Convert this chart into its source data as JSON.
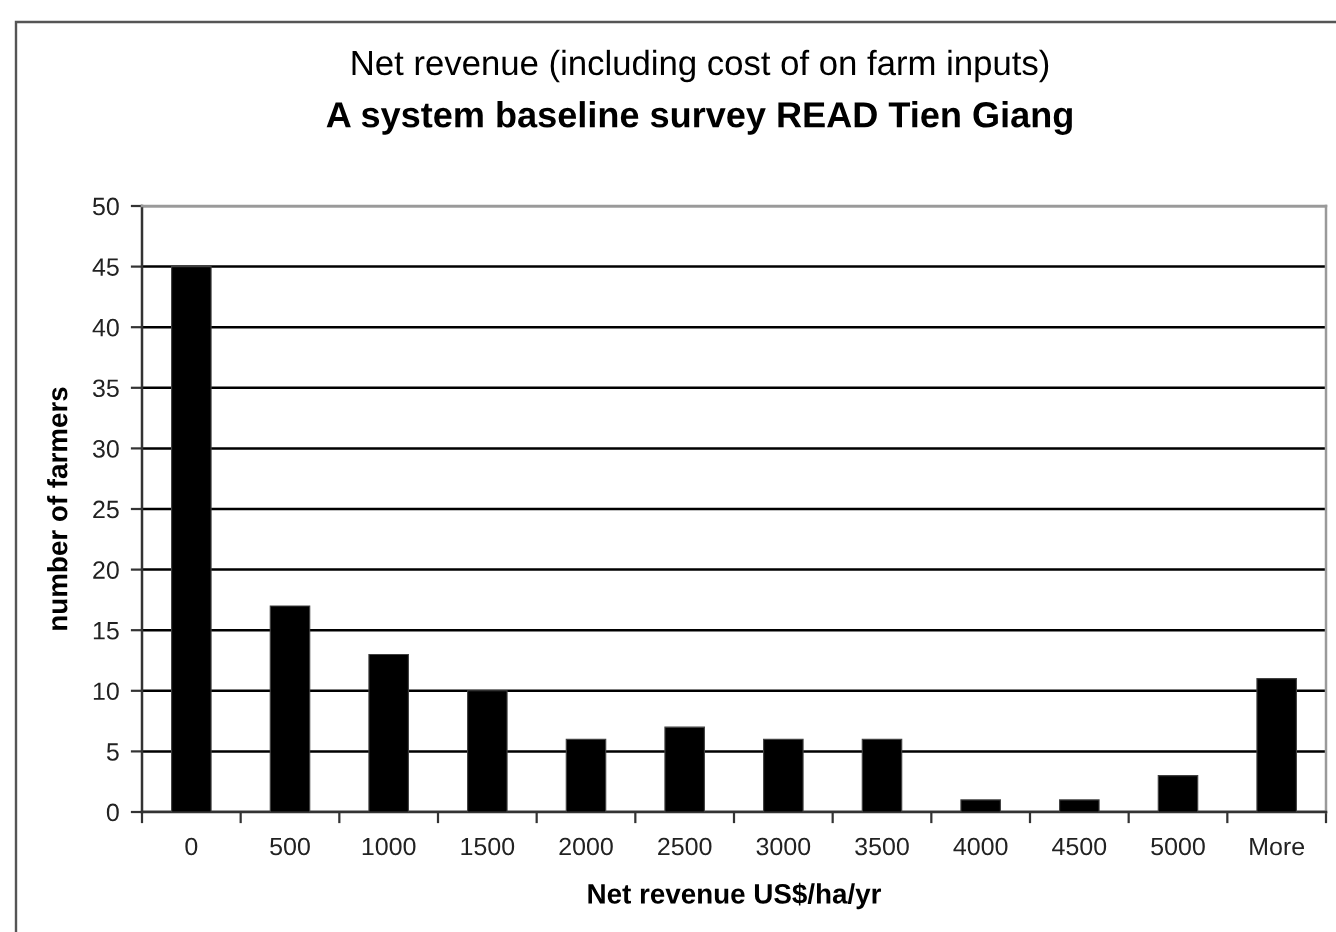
{
  "chart_data": {
    "type": "bar",
    "title": "Net revenue (including cost of on farm inputs)",
    "subtitle": "A system baseline survey READ Tien Giang",
    "xlabel": "Net revenue US$/ha/yr",
    "ylabel": "number of farmers",
    "categories": [
      "0",
      "500",
      "1000",
      "1500",
      "2000",
      "2500",
      "3000",
      "3500",
      "4000",
      "4500",
      "5000",
      "More"
    ],
    "values": [
      45,
      17,
      13,
      10,
      6,
      7,
      6,
      6,
      1,
      1,
      3,
      11
    ],
    "color": "#000000",
    "ylim": [
      0,
      50
    ],
    "yticks": [
      0,
      5,
      10,
      15,
      20,
      25,
      30,
      35,
      40,
      45,
      50
    ],
    "grid": "y"
  }
}
